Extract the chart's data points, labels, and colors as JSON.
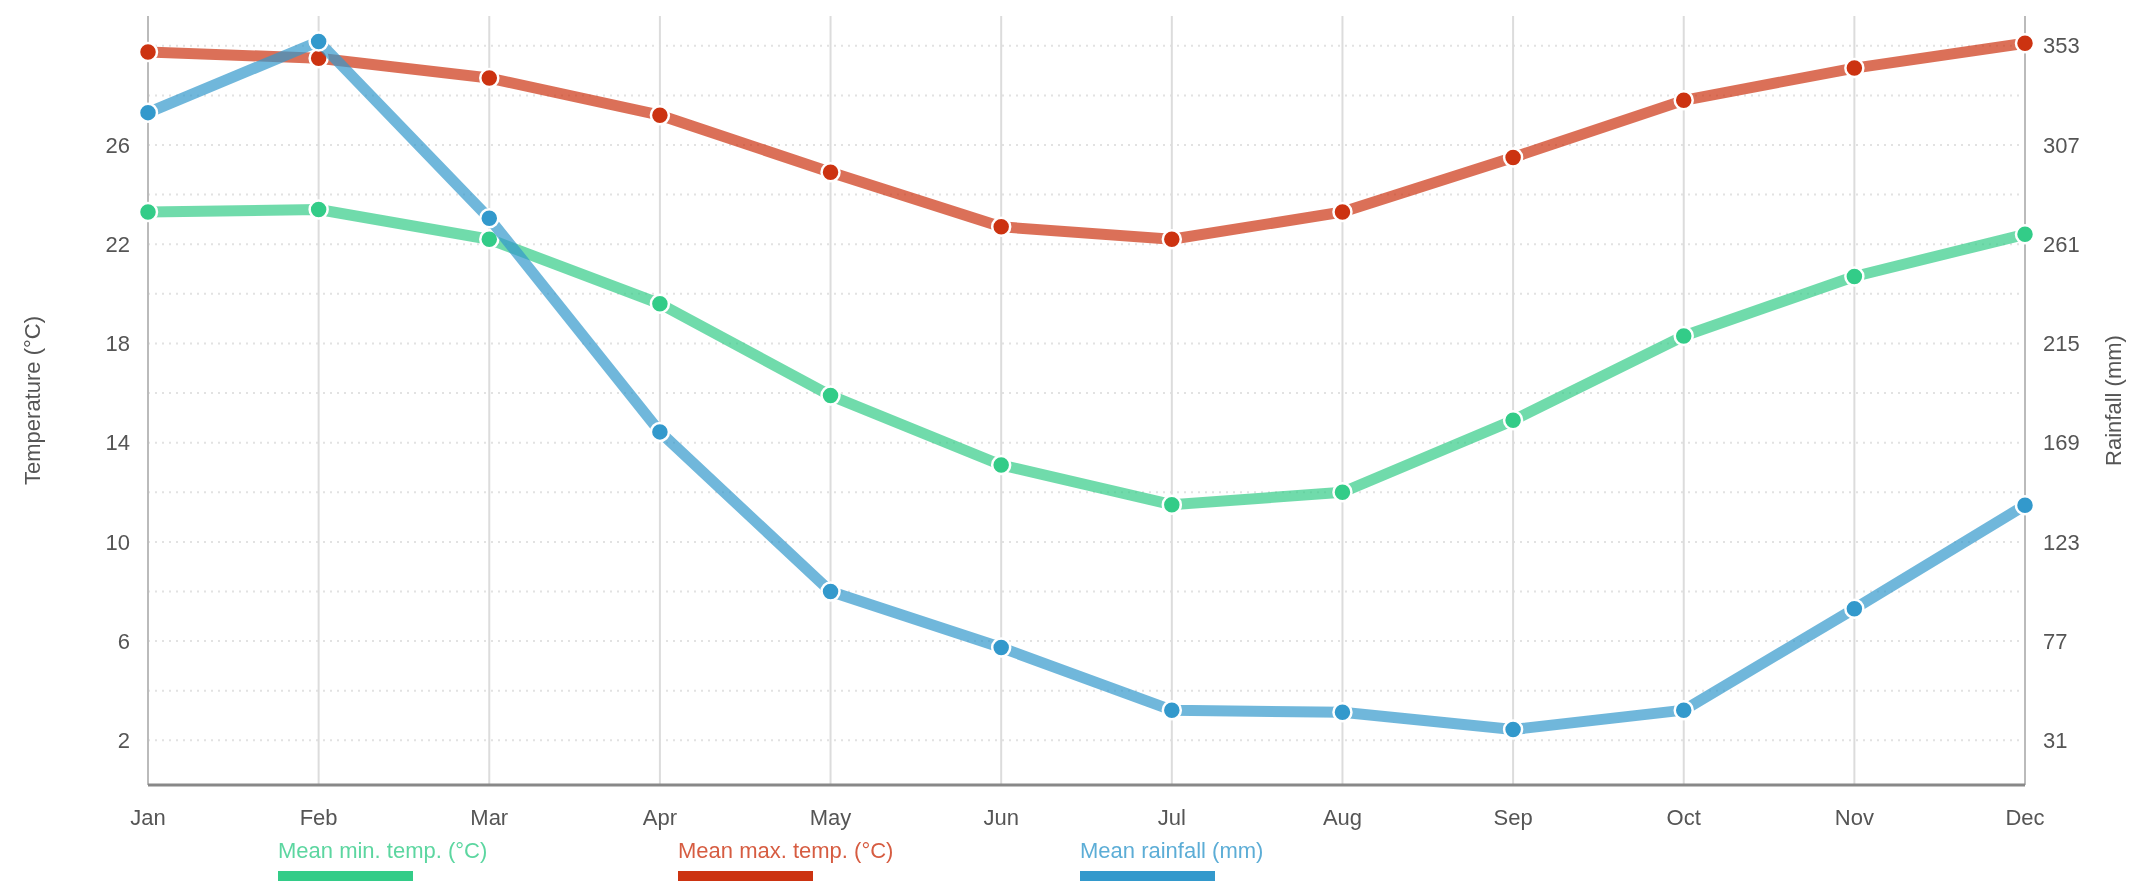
{
  "chart_data": {
    "type": "line",
    "categories": [
      "Jan",
      "Feb",
      "Mar",
      "Apr",
      "May",
      "Jun",
      "Jul",
      "Aug",
      "Sep",
      "Oct",
      "Nov",
      "Dec"
    ],
    "ylabel": "Temperature (°C)",
    "y2label": "Rainfall (mm)",
    "ylim": [
      0.2,
      31.2
    ],
    "yticks": [
      2,
      {
        "value": 4,
        "label": null
      },
      6,
      {
        "value": 8,
        "label": null
      },
      10,
      {
        "value": 12,
        "label": null
      },
      14,
      {
        "value": 16,
        "label": null
      },
      18,
      {
        "value": 20,
        "label": null
      },
      22,
      {
        "value": 24,
        "label": null
      },
      26,
      {
        "value": 28,
        "label": null
      },
      {
        "value": 30,
        "label": null
      }
    ],
    "y2lim": [
      10.3,
      366.8
    ],
    "y2ticks": [
      31,
      77,
      123,
      169,
      215,
      261,
      307,
      353
    ],
    "grid": true,
    "legend": "bottom",
    "marker": "circle",
    "line_style": "solid",
    "series": [
      {
        "name": "Mean min. temp. (°C)",
        "color": "#33cc88",
        "values": [
          23.3,
          23.4,
          22.2,
          19.6,
          15.9,
          13.1,
          11.5,
          12.0,
          14.9,
          18.3,
          20.7,
          22.4
        ]
      },
      {
        "name": "Mean max. temp. (°C)",
        "color": "#cc3311",
        "values": [
          29.75,
          29.5,
          28.7,
          27.2,
          24.9,
          22.7,
          22.2,
          23.3,
          25.5,
          27.8,
          29.1,
          30.1
        ]
      },
      {
        "name": "Mean rainfall (mm)",
        "color": "#3399cc",
        "axis": "y2",
        "values": [
          322,
          355,
          273,
          174,
          100,
          74,
          45,
          44,
          36,
          45,
          92,
          140
        ]
      }
    ]
  }
}
